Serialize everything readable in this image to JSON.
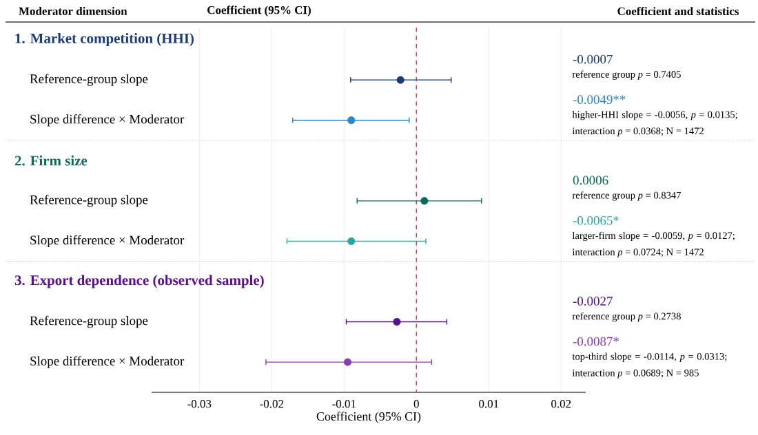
{
  "chart_data": {
    "type": "scatter",
    "orientation": "horizontal",
    "xlabel": "Coefficient (95% CI)",
    "categories": [
      null,
      "Reference-group slope",
      "Slope difference × Moderator",
      null,
      "Reference-group slope",
      "Slope difference × Moderator",
      null,
      "Reference-group slope",
      "Slope difference × Moderator"
    ],
    "series": [
      {
        "name": "1. Market competition (HHI)",
        "color": "#1b3a78",
        "values": [
          null,
          -0.0022,
          null,
          null,
          null,
          null,
          null,
          null,
          null
        ],
        "errors": [
          null,
          [
            -0.0091,
            0.0048
          ],
          null,
          null,
          null,
          null,
          null,
          null,
          null
        ]
      },
      {
        "color": "#2a86c6",
        "values": [
          null,
          null,
          -0.009,
          null,
          null,
          null,
          null,
          null,
          null
        ],
        "errors": [
          null,
          null,
          [
            -0.0171,
            -0.001
          ],
          null,
          null,
          null,
          null,
          null,
          null
        ]
      },
      {
        "name": "2. Firm size",
        "color": "#0b6a5c",
        "values": [
          null,
          null,
          null,
          null,
          0.0011,
          null,
          null,
          null,
          null
        ],
        "errors": [
          null,
          null,
          null,
          null,
          [
            -0.0082,
            0.009
          ],
          null,
          null,
          null,
          null
        ]
      },
      {
        "color": "#2aa6a0",
        "values": [
          null,
          null,
          null,
          null,
          null,
          -0.009,
          null,
          null,
          null
        ],
        "errors": [
          null,
          null,
          null,
          null,
          null,
          [
            -0.0179,
            0.0013
          ],
          null,
          null,
          null
        ]
      },
      {
        "name": "3. Export dependence (observed sample)",
        "color": "#5a0f8c",
        "values": [
          null,
          null,
          null,
          null,
          null,
          null,
          null,
          -0.0027,
          null
        ],
        "errors": [
          null,
          null,
          null,
          null,
          null,
          null,
          null,
          [
            -0.0097,
            0.0042
          ],
          null
        ]
      },
      {
        "color": "#8b3db2",
        "values": [
          null,
          null,
          null,
          null,
          null,
          null,
          null,
          null,
          -0.0095
        ],
        "errors": [
          null,
          null,
          null,
          null,
          null,
          null,
          null,
          null,
          [
            -0.0208,
            0.0021
          ]
        ]
      }
    ],
    "xlim": [
      -0.0366,
      0.0234
    ],
    "xticks": [
      -0.03,
      -0.02,
      -0.01,
      0,
      0.01,
      0.02
    ],
    "grid": "x",
    "marker": "circle",
    "ref_lines": [
      {
        "axis": "x",
        "value": 0,
        "color": "#e03c3c",
        "line_style": "dashed"
      }
    ],
    "annotations": [
      "Moderator dimension",
      "Coefficient (95% CI)",
      "Coefficient and statistics",
      "-0.0007",
      "reference group *p* = 0.7405",
      "-0.0049**",
      "higher-HHI slope = -0.0056, *p* = 0.0135; interaction *p* = 0.0368; N = 1472",
      "0.0006",
      "reference group *p* = 0.8347",
      "-0.0065*",
      "larger-firm slope = -0.0059, *p* = 0.0127; interaction *p* = 0.0724; N = 1472",
      "-0.0027",
      "reference group *p* = 0.2738",
      "-0.0087*",
      "top-third slope = -0.0114, *p* = 0.0313; interaction *p* = 0.0689; N = 985"
    ]
  }
}
